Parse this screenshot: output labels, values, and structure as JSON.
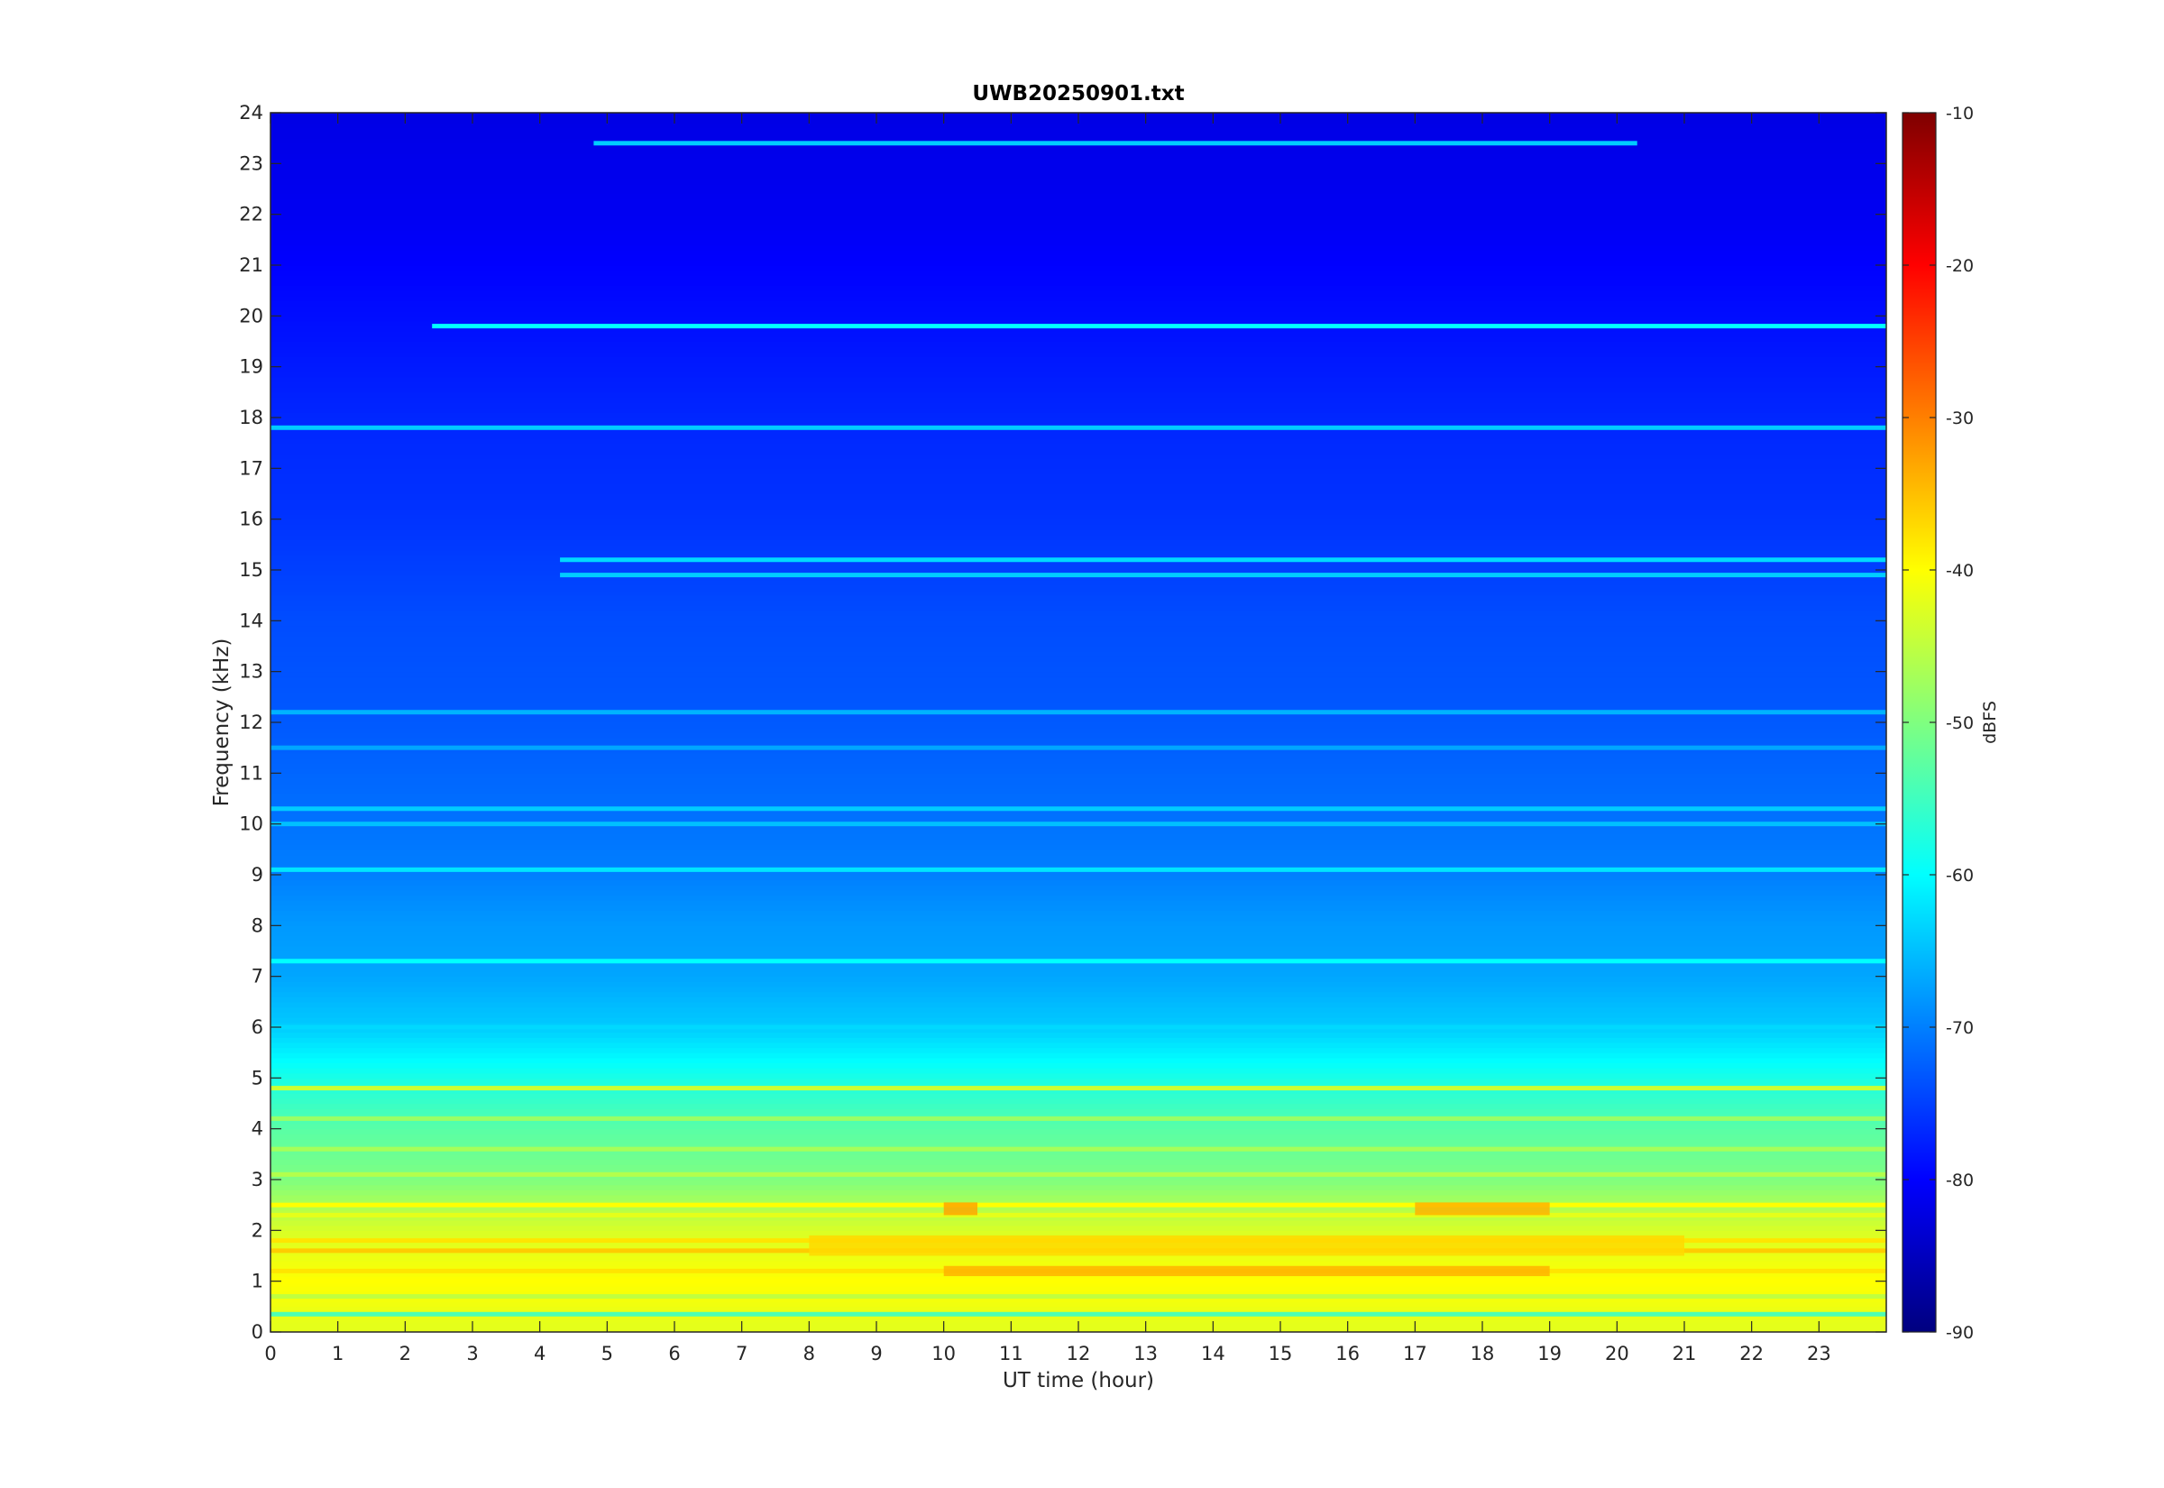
{
  "chart_data": {
    "type": "heatmap",
    "title": "UWB20250901.txt",
    "xlabel": "UT time (hour)",
    "ylabel": "Frequency (kHz)",
    "xlim": [
      0,
      24
    ],
    "ylim": [
      0,
      24
    ],
    "x_ticks": [
      "0",
      "1",
      "2",
      "3",
      "4",
      "5",
      "6",
      "7",
      "8",
      "9",
      "10",
      "11",
      "12",
      "13",
      "14",
      "15",
      "16",
      "17",
      "18",
      "19",
      "20",
      "21",
      "22",
      "23"
    ],
    "y_ticks": [
      "0",
      "1",
      "2",
      "3",
      "4",
      "5",
      "6",
      "7",
      "8",
      "9",
      "10",
      "11",
      "12",
      "13",
      "14",
      "15",
      "16",
      "17",
      "18",
      "19",
      "20",
      "21",
      "22",
      "23",
      "24"
    ],
    "colorbar": {
      "label": "dBFS",
      "range": [
        -90,
        -10
      ],
      "ticks": [
        "-90",
        "-80",
        "-70",
        "-60",
        "-50",
        "-40",
        "-30",
        "-20",
        "-10"
      ],
      "colormap": "jet"
    },
    "intensity_profile_by_frequency": [
      {
        "kHz": 0.2,
        "dBFS": -42
      },
      {
        "kHz": 1.0,
        "dBFS": -40
      },
      {
        "kHz": 2.0,
        "dBFS": -43
      },
      {
        "kHz": 3.0,
        "dBFS": -50
      },
      {
        "kHz": 4.0,
        "dBFS": -53
      },
      {
        "kHz": 5.0,
        "dBFS": -58
      },
      {
        "kHz": 6.0,
        "dBFS": -64
      },
      {
        "kHz": 7.0,
        "dBFS": -67
      },
      {
        "kHz": 8.0,
        "dBFS": -68
      },
      {
        "kHz": 9.0,
        "dBFS": -70
      },
      {
        "kHz": 10.0,
        "dBFS": -71
      },
      {
        "kHz": 12.0,
        "dBFS": -73
      },
      {
        "kHz": 14.0,
        "dBFS": -74
      },
      {
        "kHz": 16.0,
        "dBFS": -76
      },
      {
        "kHz": 18.0,
        "dBFS": -77
      },
      {
        "kHz": 20.0,
        "dBFS": -79
      },
      {
        "kHz": 22.0,
        "dBFS": -81
      },
      {
        "kHz": 24.0,
        "dBFS": -82
      }
    ],
    "narrowband_lines": [
      {
        "kHz": 19.8,
        "dBFS": -60,
        "t_start": 2.4,
        "t_end": 24
      },
      {
        "kHz": 17.8,
        "dBFS": -64,
        "t_start": 0,
        "t_end": 24
      },
      {
        "kHz": 15.2,
        "dBFS": -63,
        "t_start": 4.3,
        "t_end": 24
      },
      {
        "kHz": 14.9,
        "dBFS": -64,
        "t_start": 4.3,
        "t_end": 24
      },
      {
        "kHz": 23.4,
        "dBFS": -64,
        "t_start": 4.8,
        "t_end": 20.3
      },
      {
        "kHz": 10.3,
        "dBFS": -64,
        "t_start": 0,
        "t_end": 24
      },
      {
        "kHz": 10.0,
        "dBFS": -65,
        "t_start": 0,
        "t_end": 24
      },
      {
        "kHz": 12.2,
        "dBFS": -66,
        "t_start": 0,
        "t_end": 24
      },
      {
        "kHz": 11.5,
        "dBFS": -67,
        "t_start": 0,
        "t_end": 24
      },
      {
        "kHz": 9.1,
        "dBFS": -62,
        "t_start": 0,
        "t_end": 24
      },
      {
        "kHz": 7.3,
        "dBFS": -60,
        "t_start": 0,
        "t_end": 24
      },
      {
        "kHz": 6.0,
        "dBFS": -63,
        "t_start": 0,
        "t_end": 24
      },
      {
        "kHz": 4.8,
        "dBFS": -44,
        "t_start": 0,
        "t_end": 24
      },
      {
        "kHz": 4.2,
        "dBFS": -48,
        "t_start": 0,
        "t_end": 24
      },
      {
        "kHz": 3.6,
        "dBFS": -47,
        "t_start": 0,
        "t_end": 24
      },
      {
        "kHz": 3.1,
        "dBFS": -46,
        "t_start": 0,
        "t_end": 24
      },
      {
        "kHz": 2.5,
        "dBFS": -40,
        "t_start": 0,
        "t_end": 24
      },
      {
        "kHz": 2.3,
        "dBFS": -42,
        "t_start": 0,
        "t_end": 24
      },
      {
        "kHz": 1.8,
        "dBFS": -38,
        "t_start": 0,
        "t_end": 24
      },
      {
        "kHz": 1.6,
        "dBFS": -36,
        "t_start": 0,
        "t_end": 24
      },
      {
        "kHz": 1.2,
        "dBFS": -38,
        "t_start": 0,
        "t_end": 24
      },
      {
        "kHz": 1.0,
        "dBFS": -40,
        "t_start": 0,
        "t_end": 24
      },
      {
        "kHz": 0.7,
        "dBFS": -45,
        "t_start": 0,
        "t_end": 24
      },
      {
        "kHz": 0.35,
        "dBFS": -54,
        "t_start": 0,
        "t_end": 24
      },
      {
        "kHz": 0.1,
        "dBFS": -42,
        "t_start": 0,
        "t_end": 24
      }
    ],
    "strong_features": [
      {
        "t_start": 10.0,
        "t_end": 10.5,
        "kHz_low": 2.3,
        "kHz_high": 2.55,
        "dBFS": -33
      },
      {
        "t_start": 17.0,
        "t_end": 19.0,
        "kHz_low": 2.3,
        "kHz_high": 2.55,
        "dBFS": -34
      },
      {
        "t_start": 10.0,
        "t_end": 19.0,
        "kHz_low": 1.1,
        "kHz_high": 1.3,
        "dBFS": -34
      },
      {
        "t_start": 8.0,
        "t_end": 21.0,
        "kHz_low": 1.5,
        "kHz_high": 1.9,
        "dBFS": -37
      }
    ]
  }
}
